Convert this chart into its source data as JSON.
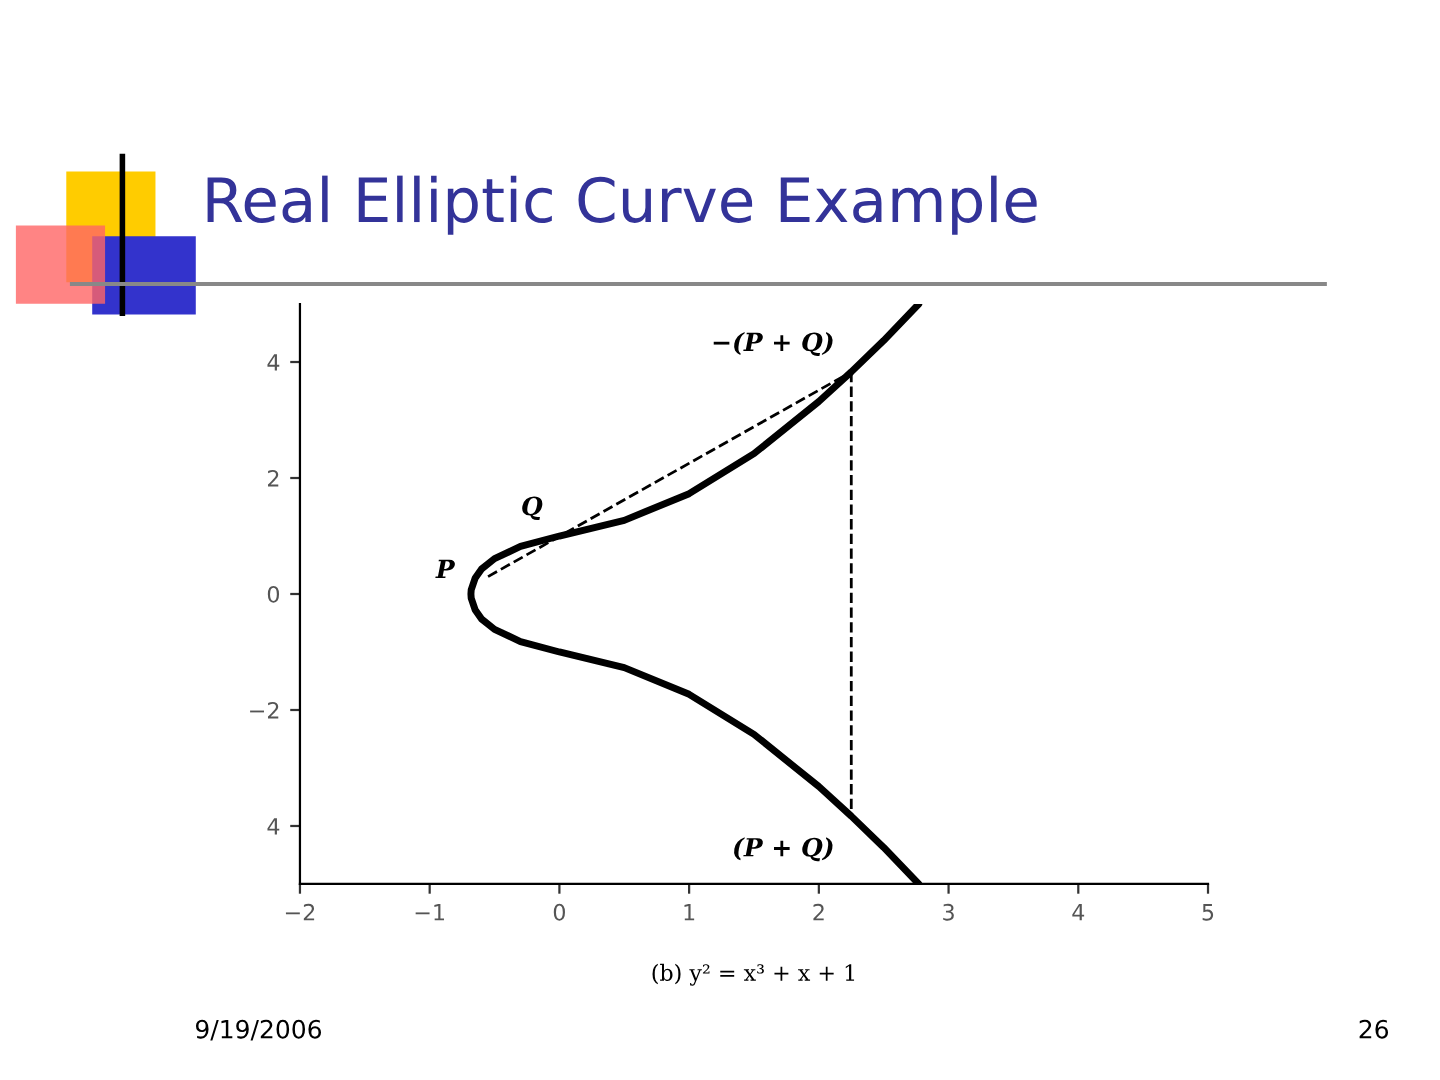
{
  "chart_data": {
    "type": "line",
    "title": "Real Elliptic Curve Example",
    "xlabel": "(b) y² = x³ + x + 1",
    "xlim": [
      -2,
      5
    ],
    "ylim": [
      -5,
      5
    ],
    "xticks": [
      {
        "value": -2,
        "label": "−2"
      },
      {
        "value": -1,
        "label": "−1"
      },
      0,
      1,
      2,
      3,
      4,
      5
    ],
    "yticks": [
      {
        "value": -4,
        "label": "4"
      },
      {
        "value": -2,
        "label": "−2"
      },
      0,
      2,
      4
    ],
    "grid": false,
    "legend": false,
    "marker": "none",
    "series": [
      {
        "color": "#000000",
        "line_style": "solid",
        "x": [
          2.77,
          2.5,
          2.25,
          2,
          1.5,
          1,
          0.5,
          0,
          -0.3,
          -0.5,
          -0.6,
          -0.65,
          -0.68,
          -0.682,
          -0.68,
          -0.65,
          -0.6,
          -0.5,
          -0.3,
          0,
          0.5,
          1,
          1.5,
          2,
          2.25,
          2.5,
          2.77
        ],
        "values": [
          -5.0,
          -4.37,
          -3.83,
          -3.32,
          -2.42,
          -1.73,
          -1.27,
          -1,
          -0.82,
          -0.61,
          -0.43,
          -0.27,
          -0.07,
          0,
          0.07,
          0.27,
          0.43,
          0.61,
          0.82,
          1,
          1.27,
          1.73,
          2.42,
          3.32,
          3.83,
          4.37,
          5.0
        ]
      },
      {
        "color": "#000000",
        "line_style": "dashed",
        "x": [
          -0.55,
          2.25
        ],
        "values": [
          0.3,
          3.83
        ]
      },
      {
        "color": "#000000",
        "line_style": "dashed",
        "x": [
          2.25,
          2.25
        ],
        "values": [
          3.83,
          -3.83
        ]
      }
    ],
    "annotations": [
      {
        "text": "P",
        "x": -0.55,
        "y": 0.3
      },
      {
        "text": "Q",
        "x": 0,
        "y": 1
      },
      {
        "text": "−(P + Q)",
        "x": 2.25,
        "y": 3.83
      },
      {
        "text": "(P + Q)",
        "x": 2.25,
        "y": -3.83
      },
      "9/19/2006",
      "26"
    ]
  }
}
